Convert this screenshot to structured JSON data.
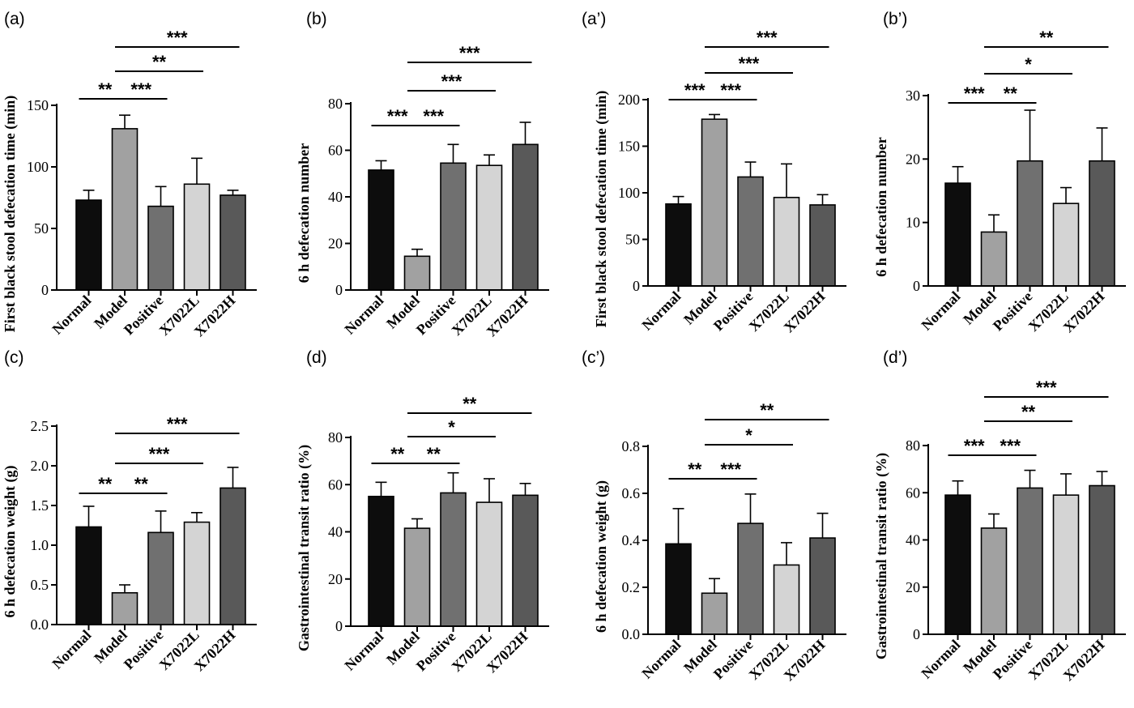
{
  "chart_data": [
    {
      "panel": "(a)",
      "type": "bar",
      "ylabel": "First black stool defecation time (min)",
      "categories": [
        "Normal",
        "Model",
        "Positive",
        "X7022L",
        "X7022H"
      ],
      "values": [
        73,
        131,
        68,
        86,
        77
      ],
      "errors": [
        8,
        11,
        16,
        21,
        4
      ],
      "colors": [
        "#0d0d0d",
        "#a1a1a1",
        "#707070",
        "#d4d4d4",
        "#595959"
      ],
      "ylim": [
        0,
        150
      ],
      "yticks": [
        0,
        50,
        100,
        150
      ],
      "comparisons": [
        {
          "from": 0,
          "to": 1,
          "label": "**"
        },
        {
          "from": 1,
          "to": 2,
          "label": "***"
        },
        {
          "from": 1,
          "to": 3,
          "label": "**"
        },
        {
          "from": 1,
          "to": 4,
          "label": "***"
        }
      ]
    },
    {
      "panel": "(b)",
      "type": "bar",
      "ylabel": "6 h defecation number",
      "categories": [
        "Normal",
        "Model",
        "Positive",
        "X7022L",
        "X7022H"
      ],
      "values": [
        51.5,
        14.5,
        54.5,
        53.5,
        62.5
      ],
      "errors": [
        4,
        3,
        8,
        4.5,
        9.5
      ],
      "colors": [
        "#0d0d0d",
        "#a1a1a1",
        "#707070",
        "#d4d4d4",
        "#595959"
      ],
      "ylim": [
        0,
        80
      ],
      "yticks": [
        0,
        20,
        40,
        60,
        80
      ],
      "comparisons": [
        {
          "from": 0,
          "to": 1,
          "label": "***"
        },
        {
          "from": 1,
          "to": 2,
          "label": "***"
        },
        {
          "from": 1,
          "to": 3,
          "label": "***"
        },
        {
          "from": 1,
          "to": 4,
          "label": "***"
        }
      ]
    },
    {
      "panel": "(a’)",
      "type": "bar",
      "ylabel": "First black stool defecation time (min)",
      "categories": [
        "Normal",
        "Model",
        "Positive",
        "X7022L",
        "X7022H"
      ],
      "values": [
        88,
        179,
        117,
        95,
        87
      ],
      "errors": [
        8,
        5,
        16,
        36,
        11
      ],
      "colors": [
        "#0d0d0d",
        "#a1a1a1",
        "#707070",
        "#d4d4d4",
        "#595959"
      ],
      "ylim": [
        0,
        200
      ],
      "yticks": [
        0,
        50,
        100,
        150,
        200
      ],
      "comparisons": [
        {
          "from": 0,
          "to": 1,
          "label": "***"
        },
        {
          "from": 1,
          "to": 2,
          "label": "***"
        },
        {
          "from": 1,
          "to": 3,
          "label": "***"
        },
        {
          "from": 1,
          "to": 4,
          "label": "***"
        }
      ]
    },
    {
      "panel": "(b’)",
      "type": "bar",
      "ylabel": "6 h defecation number",
      "categories": [
        "Normal",
        "Model",
        "Positive",
        "X7022L",
        "X7022H"
      ],
      "values": [
        16.2,
        8.5,
        19.7,
        13,
        19.7
      ],
      "errors": [
        2.6,
        2.7,
        8,
        2.5,
        5.2
      ],
      "colors": [
        "#0d0d0d",
        "#a1a1a1",
        "#707070",
        "#d4d4d4",
        "#595959"
      ],
      "ylim": [
        0,
        30
      ],
      "yticks": [
        0,
        10,
        20,
        30
      ],
      "comparisons": [
        {
          "from": 0,
          "to": 1,
          "label": "***"
        },
        {
          "from": 1,
          "to": 2,
          "label": "**"
        },
        {
          "from": 1,
          "to": 3,
          "label": "*"
        },
        {
          "from": 1,
          "to": 4,
          "label": "**"
        }
      ]
    },
    {
      "panel": "(c)",
      "type": "bar",
      "ylabel": "6 h defecation weight (g)",
      "categories": [
        "Normal",
        "Model",
        "Positive",
        "X7022L",
        "X7022H"
      ],
      "values": [
        1.23,
        0.4,
        1.16,
        1.29,
        1.72
      ],
      "errors": [
        0.26,
        0.1,
        0.27,
        0.12,
        0.26
      ],
      "colors": [
        "#0d0d0d",
        "#a1a1a1",
        "#707070",
        "#d4d4d4",
        "#595959"
      ],
      "ylim": [
        0,
        2.5
      ],
      "yticks": [
        "0.0",
        "0.5",
        "1.0",
        "1.5",
        "2.0",
        "2.5"
      ],
      "comparisons": [
        {
          "from": 0,
          "to": 1,
          "label": "**"
        },
        {
          "from": 1,
          "to": 2,
          "label": "**"
        },
        {
          "from": 1,
          "to": 3,
          "label": "***"
        },
        {
          "from": 1,
          "to": 4,
          "label": "***"
        }
      ]
    },
    {
      "panel": "(d)",
      "type": "bar",
      "ylabel": "Gastrointestinal transit ratio (%)",
      "categories": [
        "Normal",
        "Model",
        "Positive",
        "X7022L",
        "X7022H"
      ],
      "values": [
        55,
        41.5,
        56.5,
        52.5,
        55.5
      ],
      "errors": [
        6,
        4,
        8.5,
        10,
        5
      ],
      "colors": [
        "#0d0d0d",
        "#a1a1a1",
        "#707070",
        "#d4d4d4",
        "#595959"
      ],
      "ylim": [
        0,
        80
      ],
      "yticks": [
        0,
        20,
        40,
        60,
        80
      ],
      "comparisons": [
        {
          "from": 0,
          "to": 1,
          "label": "**"
        },
        {
          "from": 1,
          "to": 2,
          "label": "**"
        },
        {
          "from": 1,
          "to": 3,
          "label": "*"
        },
        {
          "from": 1,
          "to": 4,
          "label": "**"
        }
      ]
    },
    {
      "panel": "(c’)",
      "type": "bar",
      "ylabel": "6 h defecation weight (g)",
      "categories": [
        "Normal",
        "Model",
        "Positive",
        "X7022L",
        "X7022H"
      ],
      "values": [
        0.385,
        0.175,
        0.472,
        0.295,
        0.41
      ],
      "errors": [
        0.15,
        0.062,
        0.125,
        0.095,
        0.105
      ],
      "colors": [
        "#0d0d0d",
        "#a1a1a1",
        "#707070",
        "#d4d4d4",
        "#595959"
      ],
      "ylim": [
        0,
        0.8
      ],
      "yticks": [
        "0.0",
        "0.2",
        "0.4",
        "0.6",
        "0.8"
      ],
      "comparisons": [
        {
          "from": 0,
          "to": 1,
          "label": "**"
        },
        {
          "from": 1,
          "to": 2,
          "label": "***"
        },
        {
          "from": 1,
          "to": 3,
          "label": "*"
        },
        {
          "from": 1,
          "to": 4,
          "label": "**"
        }
      ]
    },
    {
      "panel": "(d’)",
      "type": "bar",
      "ylabel": "Gastrointestinal transit ratio (%)",
      "categories": [
        "Normal",
        "Model",
        "Positive",
        "X7022L",
        "X7022H"
      ],
      "values": [
        59,
        45,
        62,
        59,
        63
      ],
      "errors": [
        6,
        6,
        7.5,
        9,
        6
      ],
      "colors": [
        "#0d0d0d",
        "#a1a1a1",
        "#707070",
        "#d4d4d4",
        "#595959"
      ],
      "ylim": [
        0,
        80
      ],
      "yticks": [
        0,
        20,
        40,
        60,
        80
      ],
      "comparisons": [
        {
          "from": 0,
          "to": 1,
          "label": "***"
        },
        {
          "from": 1,
          "to": 2,
          "label": "***"
        },
        {
          "from": 1,
          "to": 3,
          "label": "**"
        },
        {
          "from": 1,
          "to": 4,
          "label": "***"
        }
      ]
    }
  ]
}
